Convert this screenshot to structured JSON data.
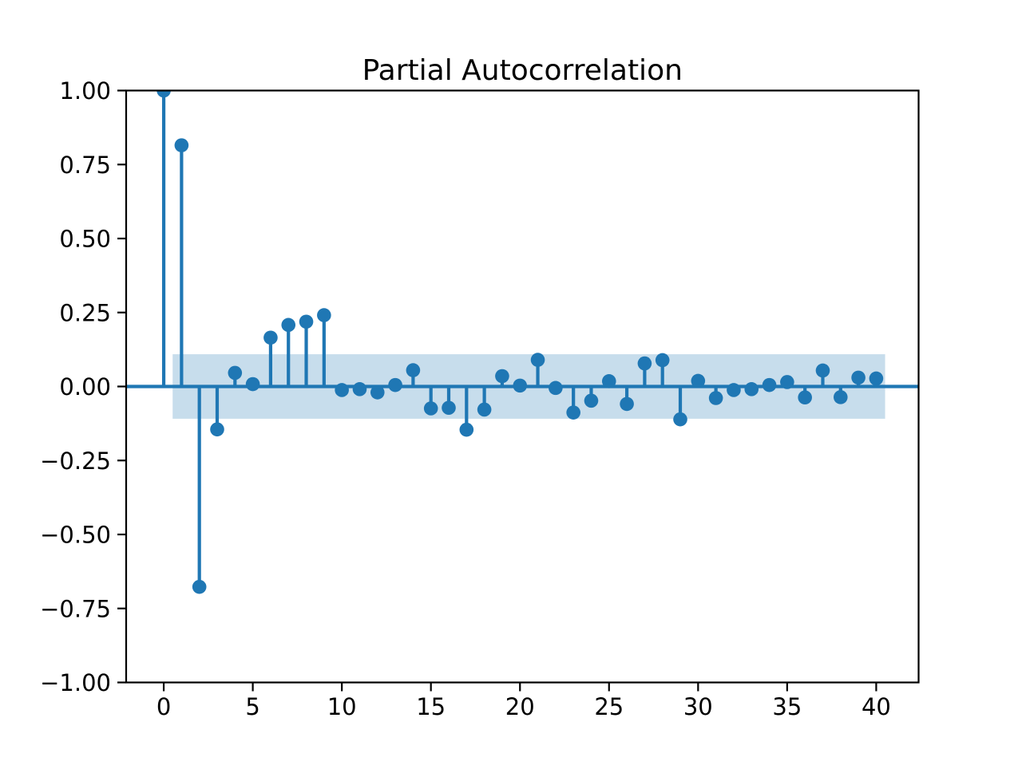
{
  "figure": {
    "background": "#ffffff"
  },
  "chart_data": {
    "type": "stem",
    "title": "Partial Autocorrelation",
    "xlabel": "",
    "ylabel": "",
    "grid": false,
    "legend": null,
    "x": [
      0,
      1,
      2,
      3,
      4,
      5,
      6,
      7,
      8,
      9,
      10,
      11,
      12,
      13,
      14,
      15,
      16,
      17,
      18,
      19,
      20,
      21,
      22,
      23,
      24,
      25,
      26,
      27,
      28,
      29,
      30,
      31,
      32,
      33,
      34,
      35,
      36,
      37,
      38,
      39,
      40
    ],
    "values": [
      1.0,
      0.815,
      -0.677,
      -0.145,
      0.046,
      0.008,
      0.165,
      0.208,
      0.219,
      0.241,
      -0.012,
      -0.009,
      -0.02,
      0.005,
      0.055,
      -0.074,
      -0.072,
      -0.146,
      -0.078,
      0.035,
      0.003,
      0.09,
      -0.005,
      -0.088,
      -0.048,
      0.018,
      -0.059,
      0.078,
      0.089,
      -0.111,
      0.019,
      -0.039,
      -0.012,
      -0.009,
      0.005,
      0.015,
      -0.037,
      0.054,
      -0.036,
      0.03,
      0.027
    ],
    "confidence_band": {
      "x_start": 0.5,
      "x_end": 40.5,
      "upper": 0.109,
      "lower": -0.109,
      "color": "#c7ddec"
    },
    "baseline": 0,
    "xlim": [
      -2.11,
      42.38
    ],
    "ylim": [
      -1.0,
      1.0
    ],
    "xticks": [
      0,
      5,
      10,
      15,
      20,
      25,
      30,
      35,
      40
    ],
    "xtick_labels": [
      "0",
      "5",
      "10",
      "15",
      "20",
      "25",
      "30",
      "35",
      "40"
    ],
    "yticks": [
      1.0,
      0.75,
      0.5,
      0.25,
      0.0,
      -0.25,
      -0.5,
      -0.75,
      -1.0
    ],
    "ytick_labels": [
      "1.00",
      "0.75",
      "0.50",
      "0.25",
      "0.00",
      "−0.25",
      "−0.50",
      "−0.75",
      "−1.00"
    ],
    "series_color": "#1f77b4",
    "spine_color": "#000000",
    "plot_background": "#ffffff"
  }
}
